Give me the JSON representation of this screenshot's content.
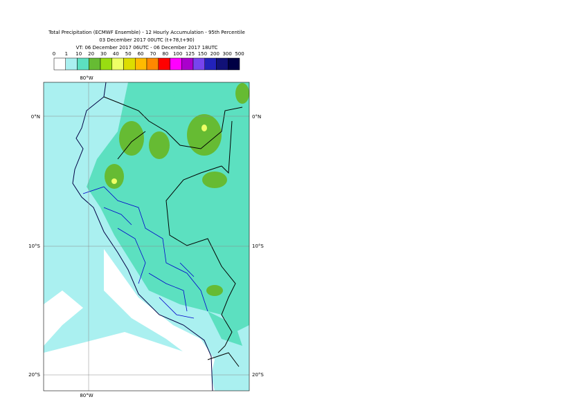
{
  "title": {
    "line1": "Total Precipitation (ECMWF Ensemble) - 12 Hourly Accumulation - 95th Percentile",
    "line2": "03 December 2017 00UTC (t+78,t+90)",
    "line3": "VT: 06 December 2017 06UTC - 06 December 2017 18UTC"
  },
  "legend": {
    "labels": [
      0,
      1,
      10,
      20,
      30,
      40,
      50,
      60,
      70,
      80,
      100,
      125,
      150,
      200,
      300,
      500
    ],
    "colors": [
      "#ffffff",
      "#aaf0f0",
      "#5ce0c0",
      "#66bb33",
      "#99dd11",
      "#eeff66",
      "#dddd00",
      "#ffbb00",
      "#ff8800",
      "#ff0000",
      "#ff00ff",
      "#aa00cc",
      "#7744ee",
      "#2222bb",
      "#111177",
      "#000044"
    ]
  },
  "map": {
    "lon_label": "80°W",
    "lat_labels": [
      "0°N",
      "10°S",
      "20°S"
    ]
  }
}
